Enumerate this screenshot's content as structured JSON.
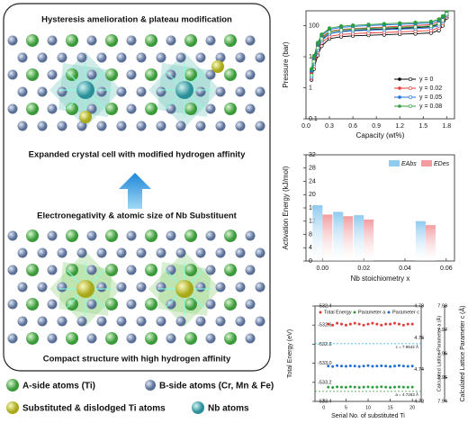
{
  "diagram": {
    "top_title": "Hysteresis amelioration & plateau modification",
    "top_caption": "Expanded crystal cell with modified hydrogen affinity",
    "bottom_title": "Electronegativity & atomic size of Nb Substituent",
    "bottom_caption": "Compact structure with high hydrogen affinity",
    "legend": [
      "A-side atoms (Ti)",
      "B-side atoms (Cr, Mn & Fe)",
      "Substituted & dislodged Ti atoms",
      "Nb atoms"
    ]
  },
  "chart_data": [
    {
      "type": "line",
      "yscale": "log",
      "xlabel": "Capacity (wt%)",
      "ylabel": "Pressure (bar)",
      "xlim": [
        0,
        1.9
      ],
      "ylim": [
        0.1,
        300
      ],
      "xticks": [
        {
          "value": 0,
          "label": "0.0"
        },
        0.3,
        0.6,
        0.9,
        1.2,
        1.5,
        1.8
      ],
      "yticks": [
        0.1,
        1,
        10,
        100
      ],
      "x": [
        0.07,
        0.1,
        0.15,
        0.2,
        0.3,
        0.45,
        0.6,
        0.8,
        1.0,
        1.2,
        1.4,
        1.6,
        1.7,
        1.75,
        1.8
      ],
      "series": [
        {
          "name": "y = 0",
          "color": "#000000",
          "values": [
            2.5,
            6,
            18,
            35,
            55,
            65,
            70,
            74,
            78,
            82,
            86,
            92,
            110,
            150,
            230
          ],
          "desorption": [
            1.8,
            4,
            11,
            22,
            38,
            44,
            47,
            49,
            51,
            53,
            55,
            58,
            70,
            100,
            180
          ]
        },
        {
          "name": "y = 0.02",
          "color": "#e53935",
          "values": [
            3,
            8,
            22,
            42,
            65,
            75,
            80,
            85,
            90,
            95,
            100,
            108,
            130,
            170,
            240
          ],
          "desorption": [
            2,
            5,
            14,
            28,
            45,
            52,
            55,
            58,
            60,
            63,
            66,
            70,
            85,
            120,
            200
          ]
        },
        {
          "name": "y = 0.05",
          "color": "#1e6fd9",
          "values": [
            3.5,
            9,
            25,
            48,
            75,
            88,
            94,
            100,
            105,
            110,
            115,
            122,
            145,
            185,
            260
          ],
          "desorption": [
            2.2,
            6,
            16,
            33,
            55,
            64,
            68,
            71,
            74,
            77,
            80,
            85,
            100,
            135,
            220
          ]
        },
        {
          "name": "y = 0.08",
          "color": "#2e9e3e",
          "values": [
            4,
            10,
            28,
            52,
            82,
            96,
            102,
            108,
            114,
            120,
            126,
            135,
            160,
            200,
            270
          ],
          "desorption": [
            2.5,
            7,
            19,
            38,
            62,
            72,
            77,
            81,
            85,
            88,
            92,
            98,
            115,
            150,
            240
          ]
        }
      ]
    },
    {
      "type": "bar",
      "xlabel": "Nb stoichiometry x",
      "ylabel": "Activation Energy (kJ/mol)",
      "xlim": [
        -0.008,
        0.064
      ],
      "ylim": [
        0,
        32
      ],
      "xticks": [
        {
          "value": 0,
          "label": "0.00"
        },
        0.02,
        0.04,
        0.06
      ],
      "yticks": [
        0,
        4,
        8,
        12,
        16,
        20,
        24,
        28,
        32
      ],
      "x": [
        0,
        0.01,
        0.02,
        0.05
      ],
      "series": [
        {
          "name": "EAbs",
          "color": "#8fcaf0",
          "values": [
            16.8,
            14.8,
            13.8,
            12.0
          ]
        },
        {
          "name": "EDes",
          "color": "#f29ca0",
          "values": [
            14.0,
            13.5,
            12.5,
            10.8
          ]
        }
      ]
    },
    {
      "type": "scatter",
      "xlabel": "Serial No. of substituted Ti",
      "ylabel": "Total Energy (eV)",
      "y2label": "Calculated Lattice Parameter a (Å)",
      "y3label": "Calculated Lattice Parameter c (Å)",
      "xlim": [
        -2,
        22
      ],
      "ylim": [
        -533.4,
        -532.4
      ],
      "y2lim": [
        4.72,
        4.78
      ],
      "y3lim": [
        7.94,
        7.98
      ],
      "xticks": [
        0,
        5,
        10,
        15,
        20
      ],
      "yticks": [
        -533.4,
        -533.2,
        {
          "value": -533,
          "label": "-533.0"
        },
        -532.8,
        -532.6,
        -532.4
      ],
      "y2ticks": [
        4.72,
        4.74,
        4.76,
        4.78
      ],
      "y3ticks": [
        7.94,
        7.95,
        7.96,
        7.97,
        7.98
      ],
      "x": [
        1,
        2,
        3,
        4,
        5,
        6,
        7,
        8,
        9,
        10,
        11,
        12,
        13,
        14,
        15,
        16,
        17,
        18,
        19,
        20
      ],
      "series": [
        {
          "name": "Total Energy",
          "color": "#e53935",
          "axis": "y",
          "values": [
            -532.59,
            -532.6,
            -532.58,
            -532.59,
            -532.6,
            -532.59,
            -532.58,
            -532.59,
            -532.6,
            -532.59,
            -532.58,
            -532.59,
            -532.6,
            -532.59,
            -532.59,
            -532.58,
            -532.59,
            -532.6,
            -532.59,
            -532.59
          ]
        },
        {
          "name": "Parameter a",
          "color": "#2e9e3e",
          "axis": "y2",
          "values": [
            4.729,
            4.7288,
            4.7291,
            4.729,
            4.7289,
            4.7292,
            4.729,
            4.7288,
            4.729,
            4.7291,
            4.7289,
            4.729,
            4.7292,
            4.729,
            4.7288,
            4.729,
            4.7291,
            4.729,
            4.7289,
            4.729
          ]
        },
        {
          "name": "Parameter c",
          "color": "#1e6fd9",
          "axis": "y3",
          "values": [
            7.9548,
            7.9546,
            7.955,
            7.9548,
            7.9547,
            7.9549,
            7.9548,
            7.9546,
            7.9548,
            7.955,
            7.9547,
            7.9548,
            7.9549,
            7.9548,
            7.9546,
            7.9548,
            7.955,
            7.9548,
            7.9547,
            7.9548
          ]
        }
      ],
      "reference_lines": [
        {
          "axis": "y3",
          "value": 7.9642,
          "label": "c = 7.9642 Å",
          "color": "#29a9d6"
        },
        {
          "axis": "y2",
          "value": 4.7263,
          "label": "a = 4.7263 Å",
          "color": "#2e9e3e"
        }
      ]
    }
  ]
}
